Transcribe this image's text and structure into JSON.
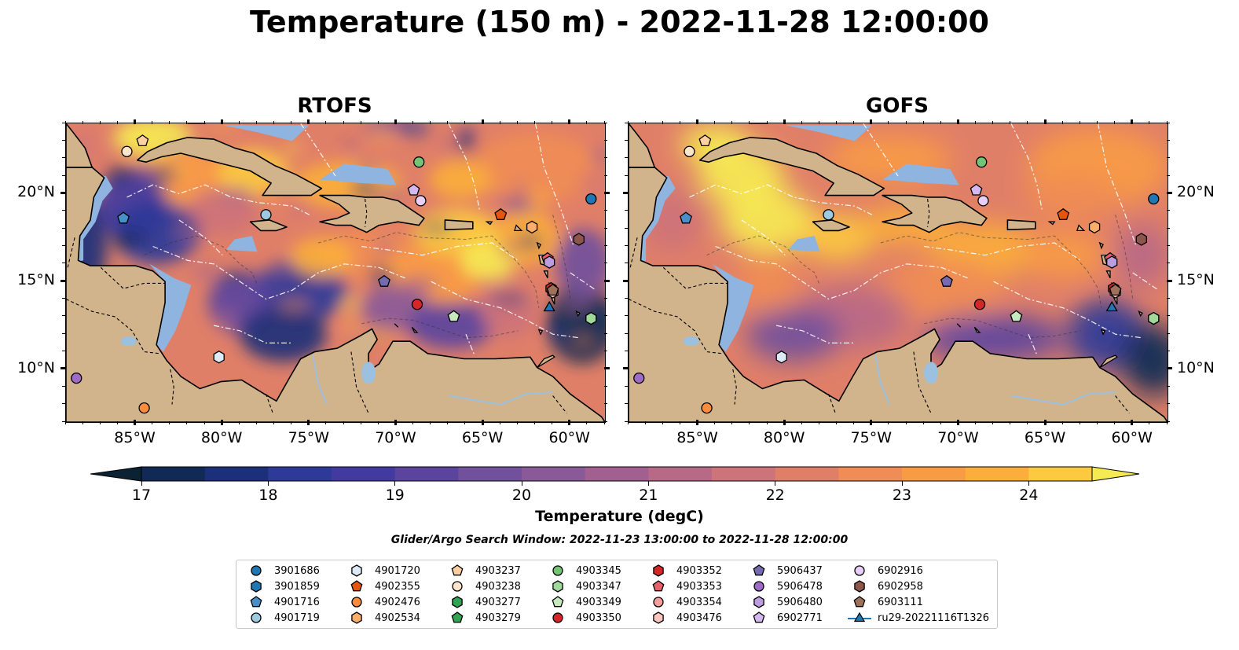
{
  "title": "Temperature (150 m) - 2022-11-28 12:00:00",
  "panels": [
    {
      "title": "RTOFS",
      "scheme": "rtofs"
    },
    {
      "title": "GOFS",
      "scheme": "gofs"
    }
  ],
  "axes": {
    "lon_ticks": [
      "85°W",
      "80°W",
      "75°W",
      "70°W",
      "65°W",
      "60°W"
    ],
    "lon_values": [
      -85,
      -80,
      -75,
      -70,
      -65,
      -60
    ],
    "lat_ticks": [
      "20°N",
      "15°N",
      "10°N"
    ],
    "lat_values": [
      20,
      15,
      10
    ],
    "lon_range": [
      -89,
      -58
    ],
    "lat_range": [
      7,
      24
    ]
  },
  "colorbar": {
    "label": "Temperature (degC)",
    "ticks": [
      "17",
      "18",
      "19",
      "20",
      "21",
      "22",
      "23",
      "24"
    ],
    "min": 17,
    "max": 24.5,
    "step": 0.5,
    "colors": [
      "#0b2233",
      "#102a55",
      "#1b2f7a",
      "#2e3a98",
      "#433aa0",
      "#5b449e",
      "#71509c",
      "#8a5a98",
      "#a16090",
      "#b86985",
      "#cd737a",
      "#e07f68",
      "#f08c55",
      "#f89b45",
      "#fbae3b",
      "#fcc940",
      "#f6ea53"
    ]
  },
  "search_window": "Glider/Argo Search Window: 2022-11-23 13:00:00 to 2022-11-28 12:00:00",
  "legend": [
    {
      "label": "3901686",
      "shape": "circle",
      "color": "#1f77b4"
    },
    {
      "label": "3901859",
      "shape": "hexagon",
      "color": "#1f77b4"
    },
    {
      "label": "4901716",
      "shape": "pentagon",
      "color": "#4a90c8"
    },
    {
      "label": "4901719",
      "shape": "circle",
      "color": "#9ecae1"
    },
    {
      "label": "4901720",
      "shape": "hexagon",
      "color": "#deebf7"
    },
    {
      "label": "4902355",
      "shape": "pentagon",
      "color": "#e6550d"
    },
    {
      "label": "4902476",
      "shape": "circle",
      "color": "#fd8d3c"
    },
    {
      "label": "4902534",
      "shape": "hexagon",
      "color": "#fdae6b"
    },
    {
      "label": "4903237",
      "shape": "pentagon",
      "color": "#fdd0a2"
    },
    {
      "label": "4903238",
      "shape": "circle",
      "color": "#fee6ce"
    },
    {
      "label": "4903277",
      "shape": "hexagon",
      "color": "#31a354"
    },
    {
      "label": "4903279",
      "shape": "pentagon",
      "color": "#31a354"
    },
    {
      "label": "4903345",
      "shape": "circle",
      "color": "#74c476"
    },
    {
      "label": "4903347",
      "shape": "hexagon",
      "color": "#a1d99b"
    },
    {
      "label": "4903349",
      "shape": "pentagon",
      "color": "#c7e9c0"
    },
    {
      "label": "4903350",
      "shape": "circle",
      "color": "#d62728"
    },
    {
      "label": "4903352",
      "shape": "hexagon",
      "color": "#d62728"
    },
    {
      "label": "4903353",
      "shape": "pentagon",
      "color": "#e7606a"
    },
    {
      "label": "4903354",
      "shape": "circle",
      "color": "#f4a09a"
    },
    {
      "label": "4903476",
      "shape": "hexagon",
      "color": "#fcc5c0"
    },
    {
      "label": "5906437",
      "shape": "pentagon",
      "color": "#756bb1"
    },
    {
      "label": "5906478",
      "shape": "circle",
      "color": "#9e6bc8"
    },
    {
      "label": "5906480",
      "shape": "hexagon",
      "color": "#bc9ee0"
    },
    {
      "label": "6902771",
      "shape": "pentagon",
      "color": "#d4b9f0"
    },
    {
      "label": "6902916",
      "shape": "circle",
      "color": "#e8cff8"
    },
    {
      "label": "6902958",
      "shape": "hexagon",
      "color": "#8c564b"
    },
    {
      "label": "6903111",
      "shape": "pentagon",
      "color": "#a0715a"
    },
    {
      "label": "ru29-20221116T1326",
      "shape": "triangle-line",
      "color": "#1f77b4"
    }
  ],
  "markers": [
    {
      "label": "3901686",
      "lon": -58.8,
      "lat": 19.7
    },
    {
      "label": "3901859",
      "lon": -58.8,
      "lat": 12.9
    },
    {
      "label": "4901716",
      "lon": -85.7,
      "lat": 18.6
    },
    {
      "label": "4901719",
      "lon": -77.5,
      "lat": 18.8
    },
    {
      "label": "4901720",
      "lon": -80.2,
      "lat": 10.7
    },
    {
      "label": "4902355",
      "lon": -64.0,
      "lat": 18.8
    },
    {
      "label": "4902476",
      "lon": -84.5,
      "lat": 7.8
    },
    {
      "label": "4902534",
      "lon": -62.2,
      "lat": 18.1
    },
    {
      "label": "4903237",
      "lon": -84.6,
      "lat": 23.0
    },
    {
      "label": "4903238",
      "lon": -85.5,
      "lat": 22.4
    },
    {
      "label": "4903277",
      "lon": -58.8,
      "lat": 12.9
    },
    {
      "label": "4903279",
      "lon": -66.7,
      "lat": 13.0
    },
    {
      "label": "4903345",
      "lon": -68.7,
      "lat": 21.8
    },
    {
      "label": "4903347",
      "lon": -58.8,
      "lat": 12.9
    },
    {
      "label": "4903349",
      "lon": -66.7,
      "lat": 13.0
    },
    {
      "label": "4903350",
      "lon": -68.8,
      "lat": 13.7
    },
    {
      "label": "4903352",
      "lon": -61.1,
      "lat": 14.6
    },
    {
      "label": "4903353",
      "lon": -61.3,
      "lat": 16.3
    },
    {
      "label": "4903354",
      "lon": -61.0,
      "lat": 14.5
    },
    {
      "label": "4903476",
      "lon": -61.0,
      "lat": 14.4
    },
    {
      "label": "5906437",
      "lon": -70.7,
      "lat": 15.0
    },
    {
      "label": "5906478",
      "lon": -88.4,
      "lat": 9.5
    },
    {
      "label": "5906480",
      "lon": -61.2,
      "lat": 16.1
    },
    {
      "label": "6902771",
      "lon": -69.0,
      "lat": 20.2
    },
    {
      "label": "6902916",
      "lon": -68.6,
      "lat": 19.6
    },
    {
      "label": "6902958",
      "lon": -59.5,
      "lat": 17.4
    },
    {
      "label": "6903111",
      "lon": -61.0,
      "lat": 14.5
    },
    {
      "label": "ru29-20221116T1326",
      "lon": -61.2,
      "lat": 13.5
    }
  ]
}
